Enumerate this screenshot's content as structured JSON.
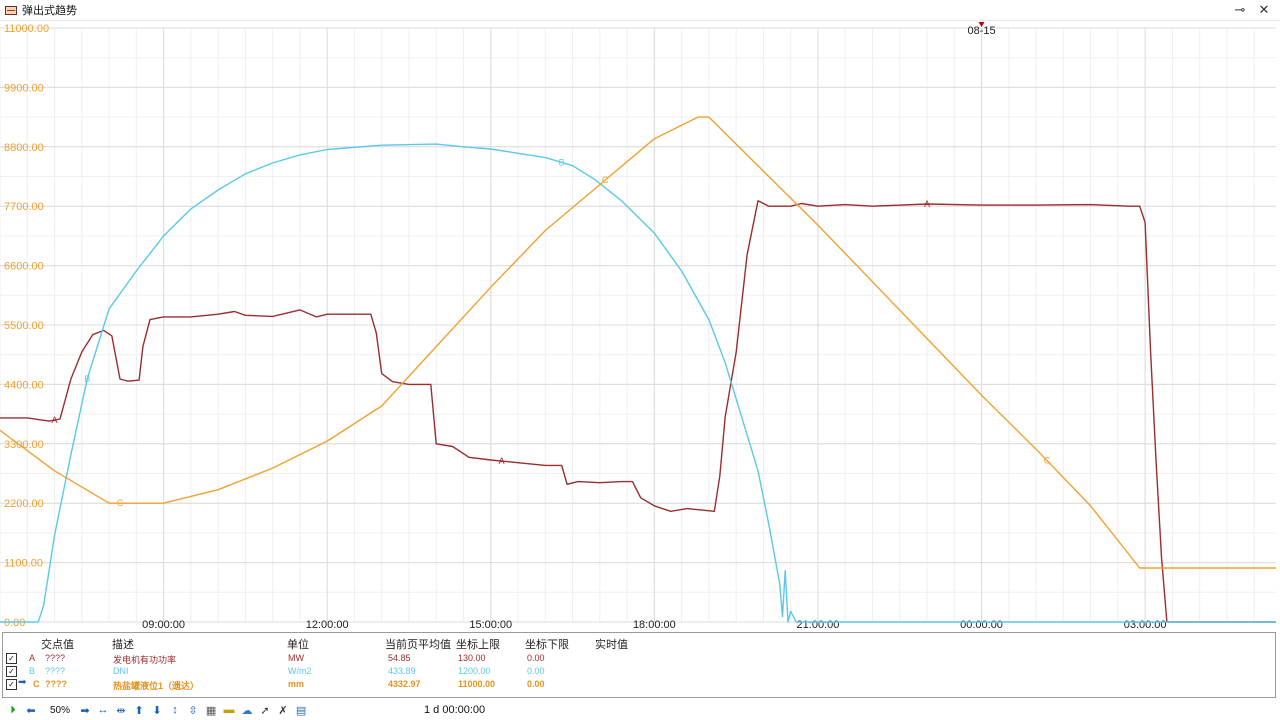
{
  "window": {
    "title": "弹出式趋势"
  },
  "chart_data": {
    "type": "line",
    "y_ticks": [
      "11000.00",
      "9900.00",
      "8800.00",
      "7700.00",
      "6600.00",
      "5500.00",
      "4400.00",
      "3300.00",
      "2200.00",
      "1100.00",
      "0.00"
    ],
    "ylim": [
      0,
      11000
    ],
    "x_tick_labels": [
      "09:00:00",
      "12:00:00",
      "15:00:00",
      "18:00:00",
      "21:00:00",
      "00:00:00",
      "03:00:00"
    ],
    "x_tick_hours": [
      9,
      12,
      15,
      18,
      21,
      24,
      27
    ],
    "xlim_hours": [
      6,
      29.4
    ],
    "date_marker": {
      "label": "08-15",
      "hour": 24
    },
    "grid": true,
    "series": [
      {
        "name": "A",
        "color": "#9b2d2d",
        "scale_max": 130,
        "marker_hours": [
          7.0,
          15.2,
          23.0
        ],
        "points": [
          [
            6.0,
            3780
          ],
          [
            6.5,
            3780
          ],
          [
            6.9,
            3720
          ],
          [
            7.1,
            3760
          ],
          [
            7.3,
            4500
          ],
          [
            7.5,
            5000
          ],
          [
            7.7,
            5320
          ],
          [
            7.9,
            5400
          ],
          [
            8.05,
            5300
          ],
          [
            8.2,
            4500
          ],
          [
            8.35,
            4460
          ],
          [
            8.55,
            4480
          ],
          [
            8.62,
            5100
          ],
          [
            8.75,
            5600
          ],
          [
            9.0,
            5650
          ],
          [
            9.5,
            5650
          ],
          [
            10.0,
            5700
          ],
          [
            10.3,
            5750
          ],
          [
            10.5,
            5680
          ],
          [
            11.0,
            5660
          ],
          [
            11.5,
            5780
          ],
          [
            11.8,
            5650
          ],
          [
            12.0,
            5700
          ],
          [
            12.5,
            5700
          ],
          [
            12.8,
            5700
          ],
          [
            12.9,
            5350
          ],
          [
            13.0,
            4600
          ],
          [
            13.2,
            4450
          ],
          [
            13.5,
            4400
          ],
          [
            13.9,
            4400
          ],
          [
            14.0,
            3300
          ],
          [
            14.3,
            3250
          ],
          [
            14.6,
            3050
          ],
          [
            15.0,
            3000
          ],
          [
            15.5,
            2950
          ],
          [
            16.0,
            2900
          ],
          [
            16.3,
            2900
          ],
          [
            16.4,
            2550
          ],
          [
            16.6,
            2600
          ],
          [
            17.0,
            2580
          ],
          [
            17.4,
            2600
          ],
          [
            17.6,
            2600
          ],
          [
            17.75,
            2300
          ],
          [
            18.0,
            2150
          ],
          [
            18.3,
            2050
          ],
          [
            18.6,
            2100
          ],
          [
            19.1,
            2050
          ],
          [
            19.2,
            2700
          ],
          [
            19.3,
            3800
          ],
          [
            19.5,
            5000
          ],
          [
            19.7,
            6800
          ],
          [
            19.9,
            7800
          ],
          [
            20.1,
            7700
          ],
          [
            20.5,
            7700
          ],
          [
            20.7,
            7750
          ],
          [
            21.0,
            7700
          ],
          [
            21.5,
            7730
          ],
          [
            22.0,
            7700
          ],
          [
            23.0,
            7740
          ],
          [
            24.0,
            7720
          ],
          [
            25.0,
            7720
          ],
          [
            26.0,
            7730
          ],
          [
            26.7,
            7700
          ],
          [
            26.9,
            7700
          ],
          [
            27.0,
            7400
          ],
          [
            27.1,
            5000
          ],
          [
            27.2,
            3000
          ],
          [
            27.3,
            1200
          ],
          [
            27.4,
            0
          ],
          [
            29.4,
            0
          ]
        ]
      },
      {
        "name": "B",
        "color": "#5bc8e8",
        "scale_max": 1200,
        "marker_hours": [
          7.6,
          16.3
        ],
        "points": [
          [
            6.0,
            0
          ],
          [
            6.7,
            0
          ],
          [
            6.8,
            300
          ],
          [
            7.0,
            1600
          ],
          [
            7.3,
            3100
          ],
          [
            7.6,
            4500
          ],
          [
            8.0,
            5800
          ],
          [
            8.5,
            6500
          ],
          [
            9.0,
            7150
          ],
          [
            9.5,
            7650
          ],
          [
            10.0,
            8000
          ],
          [
            10.5,
            8300
          ],
          [
            11.0,
            8500
          ],
          [
            11.5,
            8650
          ],
          [
            12.0,
            8750
          ],
          [
            13.0,
            8830
          ],
          [
            14.0,
            8850
          ],
          [
            14.5,
            8800
          ],
          [
            15.0,
            8760
          ],
          [
            15.5,
            8680
          ],
          [
            16.0,
            8600
          ],
          [
            16.5,
            8450
          ],
          [
            16.9,
            8200
          ],
          [
            17.4,
            7800
          ],
          [
            18.0,
            7200
          ],
          [
            18.5,
            6500
          ],
          [
            19.0,
            5600
          ],
          [
            19.3,
            4800
          ],
          [
            19.6,
            3800
          ],
          [
            19.9,
            2800
          ],
          [
            20.1,
            1800
          ],
          [
            20.3,
            700
          ],
          [
            20.35,
            100
          ],
          [
            20.4,
            950
          ],
          [
            20.45,
            0
          ],
          [
            20.5,
            200
          ],
          [
            20.55,
            100
          ],
          [
            20.6,
            0
          ],
          [
            29.4,
            0
          ]
        ]
      },
      {
        "name": "C",
        "color": "#f0a030",
        "scale_max": 11000,
        "marker_hours": [
          8.2,
          17.1,
          25.2
        ],
        "points": [
          [
            6.0,
            3550
          ],
          [
            7.0,
            2800
          ],
          [
            8.0,
            2200
          ],
          [
            9.0,
            2200
          ],
          [
            10.0,
            2450
          ],
          [
            11.0,
            2850
          ],
          [
            12.0,
            3350
          ],
          [
            13.0,
            4000
          ],
          [
            14.0,
            5100
          ],
          [
            15.0,
            6200
          ],
          [
            16.0,
            7250
          ],
          [
            17.0,
            8100
          ],
          [
            18.0,
            8950
          ],
          [
            18.8,
            9350
          ],
          [
            19.0,
            9350
          ],
          [
            20.0,
            8350
          ],
          [
            21.0,
            7350
          ],
          [
            22.0,
            6300
          ],
          [
            23.0,
            5250
          ],
          [
            24.0,
            4200
          ],
          [
            25.0,
            3200
          ],
          [
            26.0,
            2150
          ],
          [
            26.9,
            1000
          ],
          [
            27.2,
            1000
          ],
          [
            29.4,
            1000
          ]
        ]
      }
    ]
  },
  "legend": {
    "headers": {
      "point": "交点值",
      "desc": "描述",
      "unit": "单位",
      "avg": "当前页平均值",
      "upper": "坐标上限",
      "lower": "坐标下限",
      "realtime": "实时值"
    },
    "rows": [
      {
        "check": "✓",
        "letter": "A",
        "point": "????",
        "desc": "发电机有功功率",
        "unit": "MW",
        "avg": "54.85",
        "upper": "130.00",
        "lower": "0.00",
        "color": "#9b2d2d"
      },
      {
        "check": "✓",
        "letter": "B",
        "point": "????",
        "desc": "DNI",
        "unit": "W/m2",
        "avg": "433.89",
        "upper": "1200.00",
        "lower": "0.00",
        "color": "#5bc8e8"
      },
      {
        "check": "✓",
        "letter": "C",
        "point": "????",
        "desc": "热盐罐液位1（遗达）",
        "unit": "mm",
        "avg": "4332.97",
        "upper": "11000.00",
        "lower": "0.00",
        "color": "#f0a030"
      }
    ]
  },
  "toolbar": {
    "zoom": "50%",
    "timespan": "1 d  00:00:00"
  }
}
